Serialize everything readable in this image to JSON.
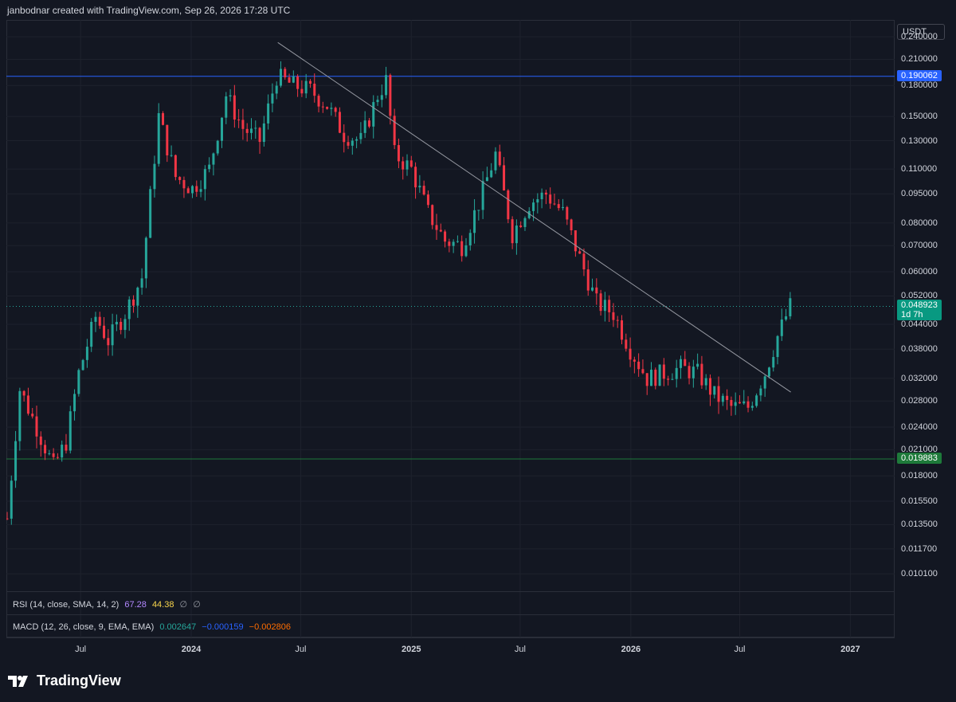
{
  "header": {
    "text": "janbodnar created with TradingView.com, Sep 26, 2026 17:28 UTC"
  },
  "currency_button": "USDT",
  "brand": {
    "name": "TradingView",
    "icon": "tradingview-logo-icon"
  },
  "indicators": {
    "rsi": {
      "label": "RSI (14, close, SMA, 14, 2)",
      "v1": "67.28",
      "v2": "44.38",
      "v3": "∅",
      "v4": "∅",
      "c1": "#b388ff",
      "c2": "#f7d44c"
    },
    "macd": {
      "label": "MACD (12, 26, close, 9, EMA, EMA)",
      "v1": "0.002647",
      "v2": "−0.000159",
      "v3": "−0.002806",
      "c1": "#26a69a",
      "c2": "#2962ff",
      "c3": "#ff6d00"
    }
  },
  "colors": {
    "up": "#26a69a",
    "down": "#f23645",
    "resistance": "#2962ff",
    "support": "#1e7a3a",
    "trendline": "#9598a1"
  },
  "chart_data": {
    "type": "candlestick",
    "y_scale": "log",
    "ylim": [
      0.0092,
      0.265
    ],
    "y_ticks": [
      "0.240000",
      "0.210000",
      "0.180000",
      "0.150000",
      "0.130000",
      "0.110000",
      "0.095000",
      "0.080000",
      "0.070000",
      "0.060000",
      "0.052000",
      "0.044000",
      "0.038000",
      "0.032000",
      "0.028000",
      "0.024000",
      "0.021000",
      "0.018000",
      "0.015500",
      "0.013500",
      "0.011700",
      "0.010100"
    ],
    "x_ticks": [
      {
        "label": "Jul",
        "major": false
      },
      {
        "label": "2024",
        "major": true
      },
      {
        "label": "Jul",
        "major": false
      },
      {
        "label": "2025",
        "major": true
      },
      {
        "label": "Jul",
        "major": false
      },
      {
        "label": "2026",
        "major": true
      },
      {
        "label": "Jul",
        "major": false
      },
      {
        "label": "2027",
        "major": true
      }
    ],
    "price_tags": [
      {
        "value": "0.190062",
        "type": "resistance"
      },
      {
        "value": "0.048923",
        "sub": "1d 7h",
        "type": "last"
      },
      {
        "value": "0.019883",
        "type": "support"
      }
    ],
    "horizontal_lines": [
      0.190062,
      0.019883
    ],
    "last_price": 0.048923,
    "trendline": {
      "from": {
        "date": "2024-05-24",
        "price": 0.232
      },
      "to": {
        "date": "2026-09-24",
        "price": 0.0295
      }
    },
    "path_close_anchors": [
      [
        "2023-03-01",
        0.014
      ],
      [
        "2023-03-22",
        0.03
      ],
      [
        "2023-04-19",
        0.024
      ],
      [
        "2023-05-17",
        0.019
      ],
      [
        "2023-06-07",
        0.022
      ],
      [
        "2023-06-28",
        0.033
      ],
      [
        "2023-07-26",
        0.046
      ],
      [
        "2023-08-16",
        0.04
      ],
      [
        "2023-09-13",
        0.047
      ],
      [
        "2023-10-11",
        0.058
      ],
      [
        "2023-11-08",
        0.15
      ],
      [
        "2023-12-06",
        0.105
      ],
      [
        "2024-01-03",
        0.098
      ],
      [
        "2024-01-31",
        0.11
      ],
      [
        "2024-02-28",
        0.17
      ],
      [
        "2024-03-27",
        0.14
      ],
      [
        "2024-04-24",
        0.13
      ],
      [
        "2024-05-22",
        0.19
      ],
      [
        "2024-06-19",
        0.18
      ],
      [
        "2024-07-17",
        0.175
      ],
      [
        "2024-08-14",
        0.16
      ],
      [
        "2024-09-11",
        0.135
      ],
      [
        "2024-10-09",
        0.13
      ],
      [
        "2024-11-06",
        0.17
      ],
      [
        "2024-11-20",
        0.185
      ],
      [
        "2024-12-04",
        0.12
      ],
      [
        "2025-01-01",
        0.11
      ],
      [
        "2025-01-29",
        0.085
      ],
      [
        "2025-02-26",
        0.072
      ],
      [
        "2025-03-26",
        0.07
      ],
      [
        "2025-04-23",
        0.09
      ],
      [
        "2025-05-21",
        0.12
      ],
      [
        "2025-06-18",
        0.075
      ],
      [
        "2025-07-16",
        0.09
      ],
      [
        "2025-08-13",
        0.095
      ],
      [
        "2025-09-10",
        0.085
      ],
      [
        "2025-10-08",
        0.065
      ],
      [
        "2025-11-05",
        0.05
      ],
      [
        "2025-12-03",
        0.047
      ],
      [
        "2025-12-31",
        0.038
      ],
      [
        "2026-01-28",
        0.032
      ],
      [
        "2026-02-25",
        0.033
      ],
      [
        "2026-03-25",
        0.034
      ],
      [
        "2026-04-22",
        0.033
      ],
      [
        "2026-05-20",
        0.029
      ],
      [
        "2026-06-17",
        0.027
      ],
      [
        "2026-07-15",
        0.027
      ],
      [
        "2026-08-12",
        0.033
      ],
      [
        "2026-09-02",
        0.041
      ],
      [
        "2026-09-23",
        0.048923
      ]
    ]
  }
}
